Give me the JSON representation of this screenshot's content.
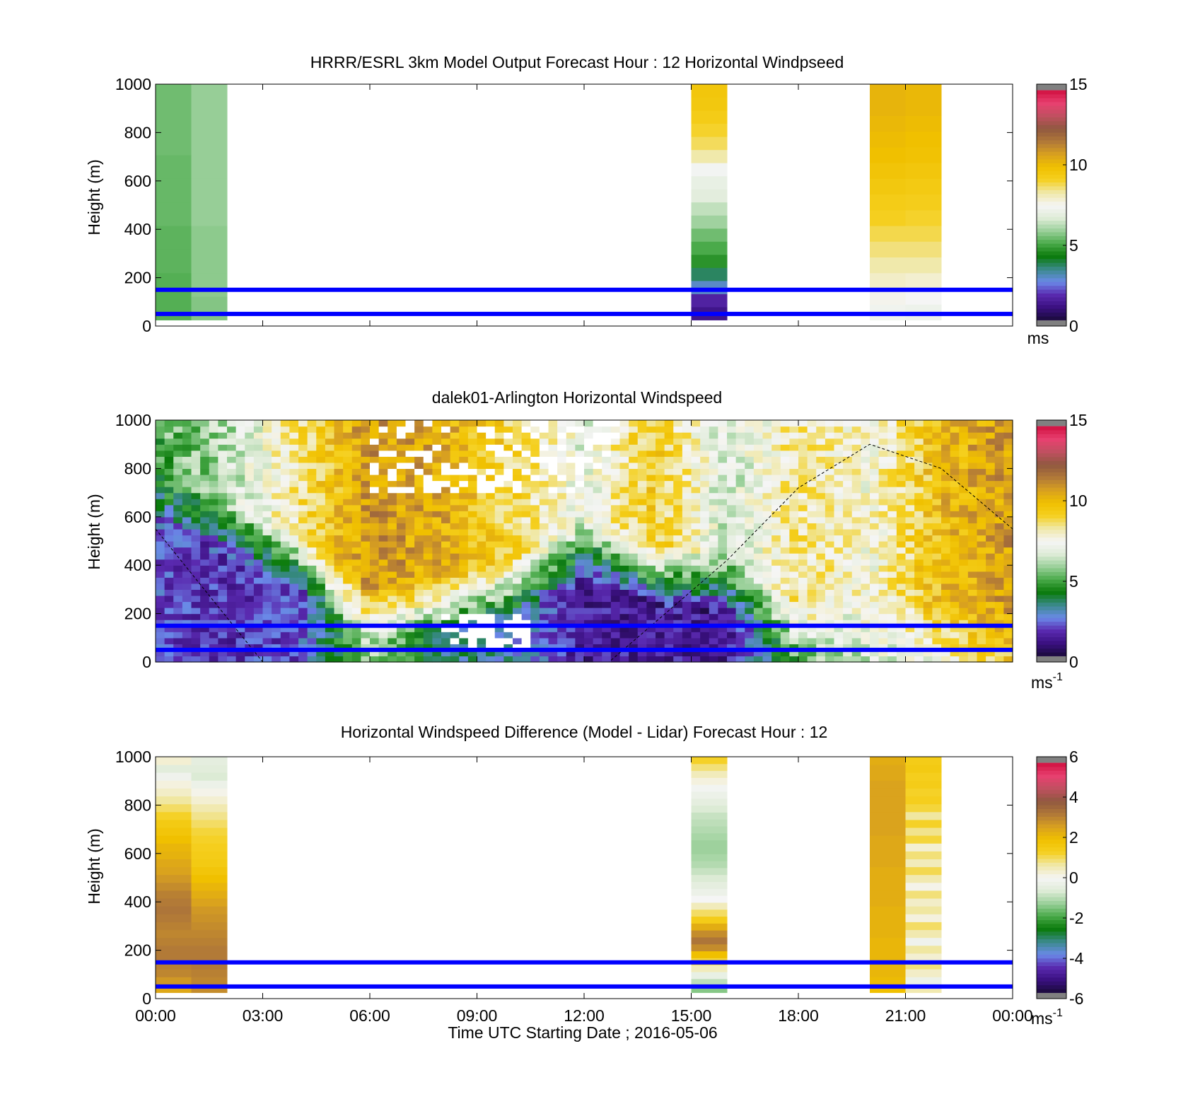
{
  "colors": {
    "reference_lines": "#0000ff",
    "colormap": [
      "#808080",
      "#1a0a3a",
      "#3a1080",
      "#5a2ab0",
      "#6a8ae8",
      "#3a8a8a",
      "#0a7a0a",
      "#4aaa4a",
      "#9ad09a",
      "#e0ecd8",
      "#f5f5f5",
      "#f0e8a8",
      "#f5d020",
      "#f0c000",
      "#d8a020",
      "#b07838",
      "#905840",
      "#c05060",
      "#e84070",
      "#d01040",
      "#808080"
    ]
  },
  "chart_data": [
    {
      "type": "heatmap",
      "title": "HRRR/ESRL 3km Model Output   Forecast Hour : 12 Horizontal Windpseed",
      "ylabel": "Height (m)",
      "ylim": [
        0,
        1000
      ],
      "yticks": [
        "0",
        "200",
        "400",
        "600",
        "800",
        "1000"
      ],
      "xlim_hours": [
        0,
        24
      ],
      "colorbar": {
        "min": 0,
        "max": 15,
        "ticks": [
          "0",
          "5",
          "10",
          "15"
        ],
        "unit": "ms"
      },
      "reference_lines_m": [
        50,
        150
      ],
      "columns": [
        {
          "t_start_h": 0,
          "t_end_h": 1,
          "z_min_m": 25,
          "z_max_m": 1000,
          "values": [
            5.1,
            5.1,
            5.2,
            5.2,
            5.3,
            5.3,
            5.3,
            5.4,
            5.4,
            5.4
          ]
        },
        {
          "t_start_h": 1,
          "t_end_h": 2,
          "z_min_m": 25,
          "z_max_m": 1000,
          "values": [
            5.6,
            5.7,
            5.7,
            5.7,
            5.8,
            5.8,
            5.8,
            5.8,
            5.8,
            5.8
          ]
        },
        {
          "t_start_h": 15,
          "t_end_h": 16,
          "z_min_m": 25,
          "z_max_m": 1000,
          "values": [
            1.0,
            1.4,
            2.8,
            3.6,
            4.6,
            5.0,
            5.4,
            5.9,
            6.3,
            6.8,
            7.0,
            7.4,
            8.3,
            8.8,
            9.1,
            9.4,
            9.6,
            9.7
          ]
        },
        {
          "t_start_h": 20,
          "t_end_h": 21,
          "z_min_m": 25,
          "z_max_m": 1000,
          "values": [
            7.3,
            7.6,
            8.0,
            8.3,
            8.6,
            8.9,
            9.2,
            9.4,
            9.6,
            9.8,
            10.0,
            10.1,
            10.2,
            10.3,
            10.3
          ]
        },
        {
          "t_start_h": 21,
          "t_end_h": 22,
          "z_min_m": 25,
          "z_max_m": 1000,
          "values": [
            7.2,
            7.5,
            7.9,
            8.3,
            8.6,
            8.9,
            9.1,
            9.3,
            9.5,
            9.7,
            9.9,
            10.0,
            10.1,
            10.2,
            10.2
          ]
        }
      ]
    },
    {
      "type": "heatmap",
      "title": "dalek01-Arlington  Horizontal Windspeed",
      "ylabel": "Height (m)",
      "ylim": [
        0,
        1000
      ],
      "yticks": [
        "0",
        "200",
        "400",
        "600",
        "800",
        "1000"
      ],
      "xlim_hours": [
        0,
        24
      ],
      "colorbar": {
        "min": 0,
        "max": 15,
        "ticks": [
          "0",
          "5",
          "10",
          "15"
        ],
        "unit": "ms",
        "unit_exponent": "-1"
      },
      "reference_lines_m": [
        50,
        150
      ],
      "wind_speed_profile": [
        {
          "t_h": 0,
          "low_jet_top_m": 550,
          "jet_speed": 2.0,
          "upper_speed": 5.0
        },
        {
          "t_h": 2,
          "low_jet_top_m": 430,
          "jet_speed": 1.6,
          "upper_speed": 6.2
        },
        {
          "t_h": 4,
          "low_jet_top_m": 300,
          "jet_speed": 2.0,
          "upper_speed": 8.5
        },
        {
          "t_h": 6,
          "low_jet_top_m": 60,
          "jet_speed": 6.0,
          "upper_speed": 11.0
        },
        {
          "t_h": 8,
          "low_jet_top_m": 120,
          "jet_speed": 3.5,
          "upper_speed": 10.5
        },
        {
          "t_h": 10,
          "low_jet_top_m": 180,
          "jet_speed": 3.0,
          "upper_speed": 9.0
        },
        {
          "t_h": 12,
          "low_jet_top_m": 340,
          "jet_speed": 1.2,
          "upper_speed": 7.0
        },
        {
          "t_h": 14,
          "low_jet_top_m": 240,
          "jet_speed": 1.3,
          "upper_speed": 9.5
        },
        {
          "t_h": 16,
          "low_jet_top_m": 200,
          "jet_speed": 1.2,
          "upper_speed": 6.5
        },
        {
          "t_h": 18,
          "low_jet_top_m": 0,
          "jet_speed": 5.0,
          "upper_speed": 8.5
        },
        {
          "t_h": 20,
          "low_jet_top_m": 0,
          "jet_speed": 6.5,
          "upper_speed": 7.5
        },
        {
          "t_h": 22,
          "low_jet_top_m": 0,
          "jet_speed": 7.5,
          "upper_speed": 10.0
        },
        {
          "t_h": 24,
          "low_jet_top_m": 0,
          "jet_speed": 9.5,
          "upper_speed": 11.0
        }
      ],
      "mixing_height_curve": [
        {
          "t_h": 0,
          "z_m": 550
        },
        {
          "t_h": 3,
          "z_m": 0
        },
        {
          "t_h": 12.7,
          "z_m": 0
        },
        {
          "t_h": 16,
          "z_m": 420
        },
        {
          "t_h": 18,
          "z_m": 720
        },
        {
          "t_h": 20,
          "z_m": 900
        },
        {
          "t_h": 22,
          "z_m": 800
        },
        {
          "t_h": 24,
          "z_m": 550
        }
      ]
    },
    {
      "type": "heatmap",
      "title": "Horizontal Windspeed Difference (Model - Lidar) Forecast Hour : 12",
      "ylabel": "Height (m)",
      "xlabel": "Time UTC  Starting Date ; 2016-05-06",
      "ylim": [
        0,
        1000
      ],
      "yticks": [
        "0",
        "200",
        "400",
        "600",
        "800",
        "1000"
      ],
      "xlim_hours": [
        0,
        24
      ],
      "xticks": [
        "00:00",
        "03:00",
        "06:00",
        "09:00",
        "12:00",
        "15:00",
        "18:00",
        "21:00",
        "00:00"
      ],
      "colorbar": {
        "min": -6,
        "max": 6,
        "ticks": [
          "-6",
          "-4",
          "-2",
          "0",
          "2",
          "4",
          "6"
        ],
        "unit": "ms",
        "unit_exponent": "-1"
      },
      "reference_lines_m": [
        50,
        150
      ],
      "columns": [
        {
          "t_start_h": 0,
          "t_end_h": 1,
          "z_min_m": 25,
          "z_max_m": 1000,
          "values": [
            2.5,
            2.8,
            3.1,
            3.2,
            3.3,
            3.3,
            3.2,
            3.1,
            3.2,
            3.3,
            3.4,
            3.3,
            3.2,
            3.0,
            2.8,
            2.6,
            2.5,
            2.3,
            2.2,
            2.0,
            1.8,
            1.6,
            1.3,
            1.0,
            0.7,
            0.4,
            0.2,
            -0.2,
            -0.6,
            0.3
          ]
        },
        {
          "t_start_h": 1,
          "t_end_h": 2,
          "z_min_m": 25,
          "z_max_m": 1000,
          "values": [
            3.0,
            3.1,
            3.2,
            3.3,
            3.3,
            3.3,
            3.2,
            3.1,
            3.0,
            2.9,
            2.8,
            2.6,
            2.4,
            2.2,
            2.0,
            1.8,
            1.6,
            1.5,
            1.4,
            1.3,
            1.2,
            1.0,
            0.8,
            0.6,
            0.3,
            0.1,
            -0.3,
            -0.7,
            -0.6,
            -0.5
          ]
        },
        {
          "t_start_h": 15,
          "t_end_h": 16,
          "z_min_m": 25,
          "z_max_m": 1000,
          "values": [
            -1.5,
            -1.0,
            -0.4,
            0.5,
            1.2,
            2.0,
            3.0,
            3.4,
            3.0,
            2.4,
            1.5,
            1.0,
            0.5,
            0.0,
            -0.3,
            -0.5,
            -0.7,
            -0.9,
            -1.1,
            -1.2,
            -1.3,
            -1.3,
            -1.2,
            -1.1,
            -1.0,
            -0.9,
            -0.7,
            -0.5,
            -0.3,
            -0.1,
            0.2,
            0.5,
            0.9,
            1.3
          ]
        },
        {
          "t_start_h": 20,
          "t_end_h": 21,
          "z_min_m": 25,
          "z_max_m": 1000,
          "values": [
            2.0,
            2.1,
            2.2,
            2.2,
            2.2,
            2.2,
            2.2,
            2.3,
            2.3,
            2.3,
            2.3,
            2.4,
            2.4,
            2.4,
            2.4,
            2.4,
            2.5,
            2.5,
            2.5,
            2.5,
            2.6,
            2.6,
            2.6,
            2.6,
            2.6,
            2.6,
            2.6,
            2.5,
            2.5,
            2.4
          ]
        },
        {
          "t_start_h": 21,
          "t_end_h": 22,
          "z_min_m": 25,
          "z_max_m": 1000,
          "values": [
            0.6,
            -0.3,
            0.4,
            0.9,
            0.3,
            0.7,
            -0.2,
            0.6,
            1.0,
            0.2,
            0.7,
            0.4,
            0.9,
            0.1,
            0.6,
            1.1,
            0.5,
            0.9,
            0.3,
            1.2,
            0.8,
            1.3,
            0.7,
            1.2,
            1.4,
            1.3,
            1.5,
            1.4,
            1.6,
            1.5
          ]
        }
      ]
    }
  ]
}
